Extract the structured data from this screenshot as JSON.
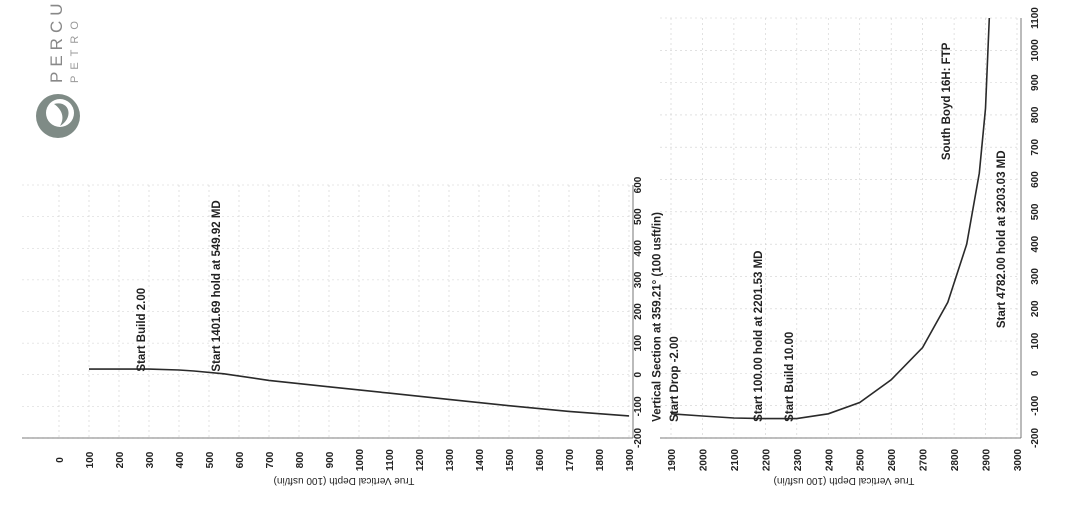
{
  "logo": {
    "name": "PERCU",
    "sub": "PETRO"
  },
  "chart_data": [
    {
      "type": "line",
      "title": "",
      "xlabel": "True Vertical Depth (100 usft/in)",
      "ylabel": "",
      "xlim": [
        0,
        1900
      ],
      "ylim": [
        -200,
        600
      ],
      "x_ticks": [
        0,
        100,
        200,
        300,
        400,
        500,
        600,
        700,
        800,
        900,
        1000,
        1100,
        1200,
        1300,
        1400,
        1500,
        1600,
        1700,
        1800,
        1900
      ],
      "y_ticks": [
        -200,
        -100,
        0,
        100,
        200,
        300,
        400,
        500,
        600
      ],
      "series": [
        {
          "x": [
            100,
            300,
            400,
            450,
            549.92,
            700,
            900,
            1100,
            1300,
            1500,
            1700,
            1900
          ],
          "y": [
            18,
            18,
            15,
            12,
            3,
            -18,
            -38,
            -58,
            -78,
            -98,
            -116,
            -130
          ]
        }
      ],
      "annotations": [
        {
          "text": "Start Build 2.00",
          "x": 300,
          "y": 10
        },
        {
          "text": "Start 1401.69 hold at 549.92 MD",
          "x": 549.92,
          "y": 10
        }
      ]
    },
    {
      "type": "line",
      "title": "",
      "xlabel": "True Vertical Depth (100 usft/in)",
      "ylabel": "Vertical Section at 359.21° (100 usft/in)",
      "xlim": [
        1900,
        3000
      ],
      "ylim": [
        -200,
        1100
      ],
      "x_ticks": [
        1900,
        2000,
        2100,
        2200,
        2300,
        2400,
        2500,
        2600,
        2700,
        2800,
        2900,
        3000
      ],
      "y_ticks": [
        -200,
        -100,
        0,
        100,
        200,
        300,
        400,
        500,
        600,
        700,
        800,
        900,
        1000,
        1100
      ],
      "series": [
        {
          "x": [
            1900,
            2000,
            2100,
            2201.53,
            2300,
            2400,
            2500,
            2600,
            2700,
            2780,
            2840,
            2880,
            2900,
            2912
          ],
          "y": [
            -125,
            -132,
            -138,
            -140,
            -140,
            -125,
            -90,
            -20,
            80,
            220,
            400,
            620,
            820,
            1100
          ]
        }
      ],
      "annotations": [
        {
          "text": "Vertical Section at 359.21° (100 usft/in)",
          "x": 1880,
          "y": -150
        },
        {
          "text": "Start Drop -2.00",
          "x": 1935,
          "y": -150
        },
        {
          "text": "Start 100.00 hold at 2201.53 MD",
          "x": 2201.53,
          "y": -150
        },
        {
          "text": "Start Build 10.00",
          "x": 2300,
          "y": -150
        },
        {
          "text": "South Boyd 16H: FTP",
          "x": 2800,
          "y": 660
        },
        {
          "text": "Start 4782.00 hold at 3203.03 MD",
          "x": 2975,
          "y": 140
        }
      ]
    }
  ]
}
